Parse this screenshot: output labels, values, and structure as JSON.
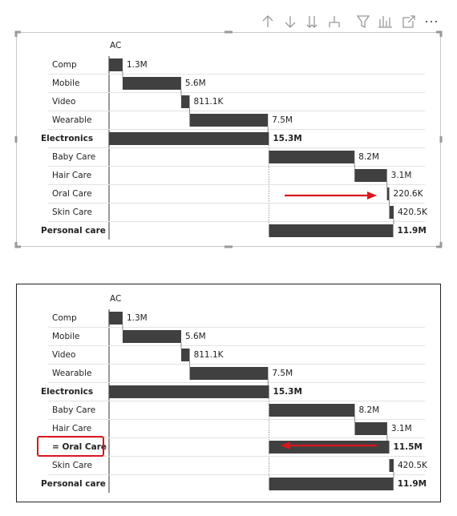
{
  "charts": [
    {
      "header": "AC",
      "rows": [
        {
          "label": "Comp",
          "kind": "item",
          "value": 1300000,
          "value_label": "1.3M"
        },
        {
          "label": "Mobile",
          "kind": "item",
          "value": 5600000,
          "value_label": "5.6M"
        },
        {
          "label": "Video",
          "kind": "item",
          "value": 811100,
          "value_label": "811.1K"
        },
        {
          "label": "Wearable",
          "kind": "item",
          "value": 7500000,
          "value_label": "7.5M"
        },
        {
          "label": "Electronics",
          "kind": "total",
          "value": 15300000,
          "value_label": "15.3M"
        },
        {
          "label": "Baby Care",
          "kind": "item",
          "value": 8200000,
          "value_label": "8.2M"
        },
        {
          "label": "Hair Care",
          "kind": "item",
          "value": 3100000,
          "value_label": "3.1M"
        },
        {
          "label": "Oral Care",
          "kind": "item",
          "value": 220600,
          "value_label": "220.6K"
        },
        {
          "label": "Skin Care",
          "kind": "item",
          "value": 420500,
          "value_label": "420.5K"
        },
        {
          "label": "Personal care",
          "kind": "total",
          "value": 11900000,
          "value_label": "11.9M"
        }
      ]
    },
    {
      "header": "AC",
      "rows": [
        {
          "label": "Comp",
          "kind": "item",
          "value": 1300000,
          "value_label": "1.3M"
        },
        {
          "label": "Mobile",
          "kind": "item",
          "value": 5600000,
          "value_label": "5.6M"
        },
        {
          "label": "Video",
          "kind": "item",
          "value": 811100,
          "value_label": "811.1K"
        },
        {
          "label": "Wearable",
          "kind": "item",
          "value": 7500000,
          "value_label": "7.5M"
        },
        {
          "label": "Electronics",
          "kind": "total",
          "value": 15300000,
          "value_label": "15.3M"
        },
        {
          "label": "Baby Care",
          "kind": "item",
          "value": 8200000,
          "value_label": "8.2M"
        },
        {
          "label": "Hair Care",
          "kind": "item",
          "value": 3100000,
          "value_label": "3.1M"
        },
        {
          "label": "= Oral Care",
          "kind": "result",
          "value": 11500000,
          "value_label": "11.5M"
        },
        {
          "label": "Skin Care",
          "kind": "item",
          "value": 420500,
          "value_label": "420.5K"
        },
        {
          "label": "Personal care",
          "kind": "total",
          "value": 11900000,
          "value_label": "11.9M"
        }
      ]
    }
  ]
}
